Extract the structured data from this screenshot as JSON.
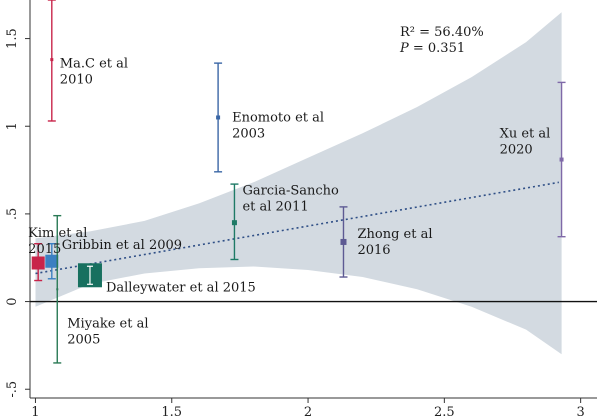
{
  "chart_data": {
    "type": "scatter",
    "title": "",
    "xlabel": "",
    "ylabel": "",
    "xlim": [
      0.98,
      3.06
    ],
    "ylim": [
      -0.55,
      1.72
    ],
    "x_ticks": [
      {
        "value": 1,
        "label": "1"
      },
      {
        "value": 1.5,
        "label": "1.5"
      },
      {
        "value": 2,
        "label": "2"
      },
      {
        "value": 2.5,
        "label": "2.5"
      },
      {
        "value": 3,
        "label": "3"
      }
    ],
    "y_ticks": [
      {
        "value": -0.5,
        "label": "-.5"
      },
      {
        "value": 0,
        "label": "0"
      },
      {
        "value": 0.5,
        "label": ".5"
      },
      {
        "value": 1,
        "label": "1"
      },
      {
        "value": 1.5,
        "label": "1.5"
      }
    ],
    "grid": false,
    "reference_line_y": 0,
    "annotation": {
      "r2_label": "R² = 56.40%",
      "p_italic": "P",
      "p_rest": " = 0.351"
    },
    "confidence_band": [
      {
        "x": 1.0,
        "lower": -0.03,
        "upper": 0.36
      },
      {
        "x": 1.2,
        "lower": 0.1,
        "upper": 0.4
      },
      {
        "x": 1.4,
        "lower": 0.16,
        "upper": 0.46
      },
      {
        "x": 1.6,
        "lower": 0.19,
        "upper": 0.56
      },
      {
        "x": 1.8,
        "lower": 0.2,
        "upper": 0.68
      },
      {
        "x": 2.0,
        "lower": 0.18,
        "upper": 0.82
      },
      {
        "x": 2.2,
        "lower": 0.14,
        "upper": 0.96
      },
      {
        "x": 2.4,
        "lower": 0.07,
        "upper": 1.11
      },
      {
        "x": 2.6,
        "lower": -0.03,
        "upper": 1.28
      },
      {
        "x": 2.8,
        "lower": -0.16,
        "upper": 1.48
      },
      {
        "x": 2.93,
        "lower": -0.3,
        "upper": 1.65
      }
    ],
    "regression_line": {
      "x1": 1.0,
      "y1": 0.16,
      "x2": 2.92,
      "y2": 0.68
    },
    "studies": [
      {
        "label": "Ma.C et al\n2010",
        "x": 1.06,
        "y": 1.38,
        "lower": 1.03,
        "upper": 1.72,
        "weight": 3,
        "color": "#c8244a"
      },
      {
        "label": "Enomoto et al\n2003",
        "x": 1.67,
        "y": 1.05,
        "lower": 0.74,
        "upper": 1.36,
        "weight": 4,
        "color": "#3b67a6"
      },
      {
        "label": "Xu et al\n2020",
        "x": 2.93,
        "y": 0.81,
        "lower": 0.37,
        "upper": 1.25,
        "weight": 4,
        "color": "#7f69a8"
      },
      {
        "label": "Garcia-Sancho\net al 2011",
        "x": 1.73,
        "y": 0.45,
        "lower": 0.24,
        "upper": 0.67,
        "weight": 5,
        "color": "#1e7a66"
      },
      {
        "label": "Zhong et al\n2016",
        "x": 2.13,
        "y": 0.34,
        "lower": 0.14,
        "upper": 0.54,
        "weight": 6,
        "color": "#5d5a93"
      },
      {
        "label": "Kim et al\n2015",
        "x": 1.01,
        "y": 0.22,
        "lower": 0.12,
        "upper": 0.33,
        "weight": 13,
        "color": "#c8244a"
      },
      {
        "label": "Gribbin et al 2009",
        "x": 1.06,
        "y": 0.23,
        "lower": 0.13,
        "upper": 0.33,
        "weight": 13,
        "color": "#3b80c2"
      },
      {
        "label": "Dalleywater et al 2015",
        "x": 1.2,
        "y": 0.15,
        "lower": 0.11,
        "upper": 0.19,
        "weight": 24,
        "color": "#17705f"
      },
      {
        "label": "Miyake et al\n2005",
        "x": 1.08,
        "y": 0.07,
        "lower": -0.35,
        "upper": 0.49,
        "weight": 2,
        "color": "#2a7a55"
      }
    ]
  }
}
